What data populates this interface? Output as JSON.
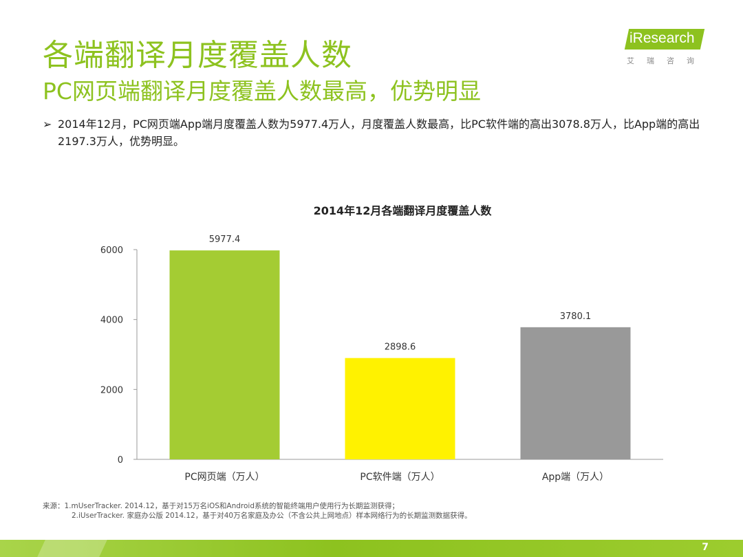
{
  "header": {
    "title": "各端翻译月度覆盖人数",
    "subtitle": "PC网页端翻译月度覆盖人数最高，优势明显"
  },
  "logo": {
    "text": "iResearch",
    "sub": "艾瑞咨询"
  },
  "bullet": {
    "arrow": "➢",
    "text": "2014年12月，PC网页端App端月度覆盖人数为5977.4万人，月度覆盖人数最高，比PC软件端的高出3078.8万人，比App端的高出2197.3万人，优势明显。"
  },
  "source": {
    "line1": "来源：1.mUserTracker. 2014.12，基于对15万名iOS和Android系统的智能终端用户使用行为长期监测获得；",
    "line2": "2.iUserTracker. 家庭办公版 2014.12，基于对40万名家庭及办公（不含公共上网地点）样本网络行为的长期监测数据获得。"
  },
  "page": {
    "number": "7"
  },
  "colors": {
    "accent": "#8dc21f",
    "bar_pc_web": "#a4cc33",
    "bar_pc_soft": "#fff200",
    "bar_app": "#999999"
  },
  "chart_data": {
    "type": "bar",
    "title": "2014年12月各端翻译月度覆盖人数",
    "categories": [
      "PC网页端（万人）",
      "PC软件端（万人）",
      "App端（万人）"
    ],
    "values": [
      5977.4,
      2898.6,
      3780.1
    ],
    "value_labels": [
      "5977.4",
      "2898.6",
      "3780.1"
    ],
    "bar_colors": [
      "#a4cc33",
      "#fff200",
      "#999999"
    ],
    "yticks": [
      0,
      2000,
      4000,
      6000
    ],
    "ylim": [
      0,
      6000
    ],
    "xlabel": "",
    "ylabel": "",
    "grid": false,
    "legend": "none"
  }
}
